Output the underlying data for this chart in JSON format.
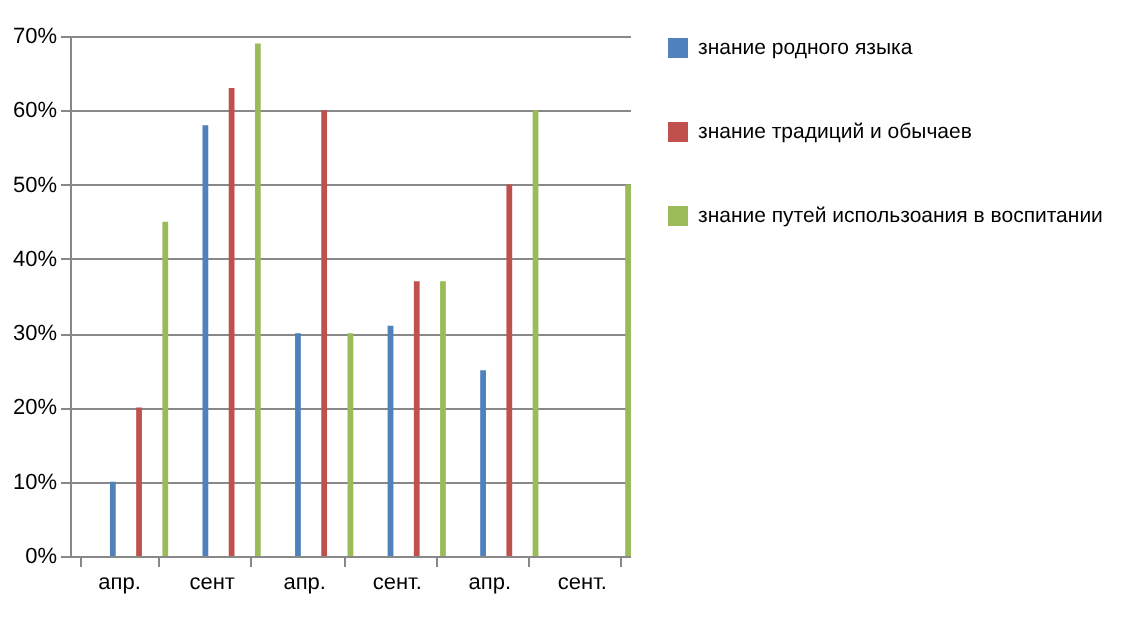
{
  "chart_data": {
    "type": "bar",
    "categories": [
      "апр.",
      "сент",
      "апр.",
      "сент.",
      "апр.",
      "сент."
    ],
    "series": [
      {
        "name": "знание родного языка",
        "color": "#4f81bd",
        "values": [
          10,
          58,
          30,
          31,
          25,
          0
        ]
      },
      {
        "name": "знание традиций и обычаев",
        "color": "#c0504d",
        "values": [
          20,
          63,
          60,
          37,
          50,
          0
        ]
      },
      {
        "name": "знание путей использоания в воспитании",
        "color": "#9bbb59",
        "values": [
          45,
          69,
          30,
          37,
          60,
          50
        ]
      }
    ],
    "ylim": [
      0,
      70
    ],
    "yticks": [
      {
        "value": 0,
        "label": "0%"
      },
      {
        "value": 10,
        "label": "10%"
      },
      {
        "value": 20,
        "label": "20%"
      },
      {
        "value": 30,
        "label": "30%"
      },
      {
        "value": 40,
        "label": "40%"
      },
      {
        "value": 50,
        "label": "50%"
      },
      {
        "value": 60,
        "label": "60%"
      },
      {
        "value": 70,
        "label": "70%"
      }
    ],
    "grid": "y",
    "legend": "right"
  }
}
